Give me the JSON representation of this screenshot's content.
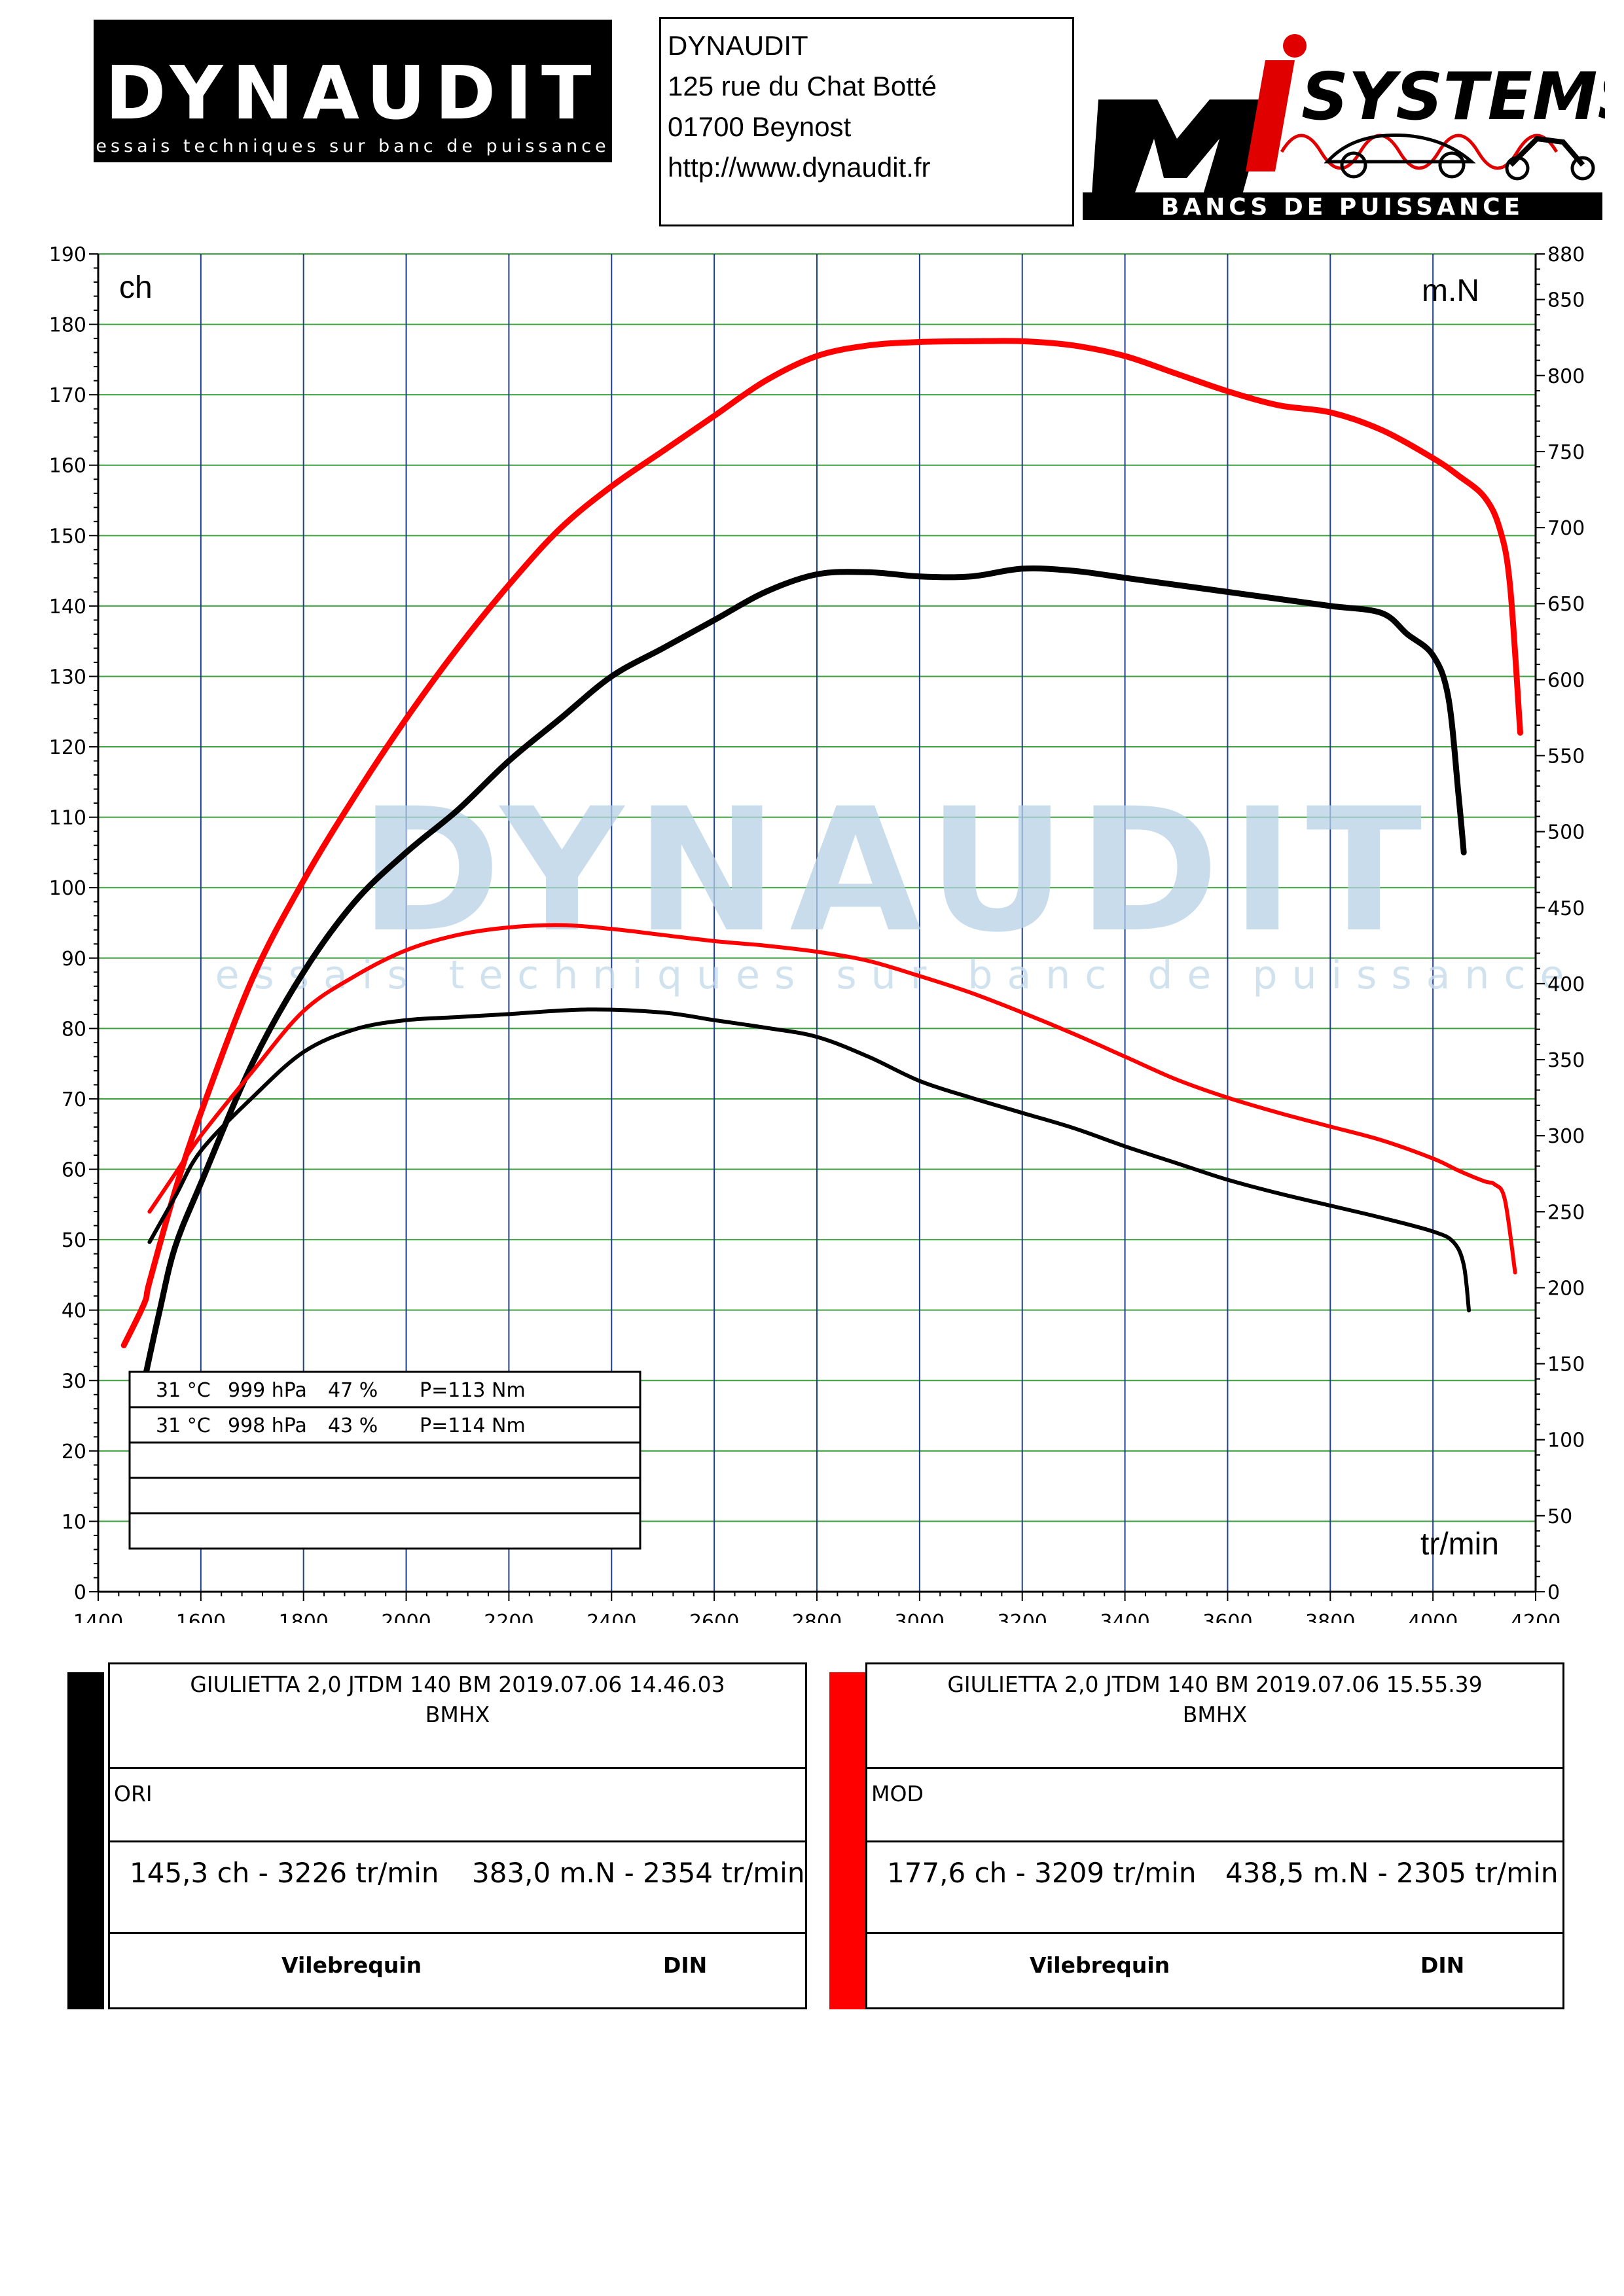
{
  "header": {
    "logo_left": {
      "brand": "DYNAUDIT",
      "tagline": "essais techniques sur banc de puissance"
    },
    "address": [
      "DYNAUDIT",
      "125 rue du Chat Botté",
      "01700 Beynost",
      "http://www.dynaudit.fr"
    ],
    "logo_right": {
      "brand_top": "SYSTEMS",
      "brand_bottom": "BANCS DE PUISSANCE",
      "letters": "Mi"
    }
  },
  "watermark": {
    "brand": "DYNAUDIT",
    "tagline": "essais techniques sur banc de puissance"
  },
  "conditions": [
    {
      "temp": "31 °C",
      "pressure": "999 hPa",
      "humidity": "47 %",
      "p": "P=113 Nm"
    },
    {
      "temp": "31 °C",
      "pressure": "998 hPa",
      "humidity": "43 %",
      "p": "P=114 Nm"
    },
    {
      "temp": "",
      "pressure": "",
      "humidity": "",
      "p": ""
    },
    {
      "temp": "",
      "pressure": "",
      "humidity": "",
      "p": ""
    },
    {
      "temp": "",
      "pressure": "",
      "humidity": "",
      "p": ""
    }
  ],
  "colors": {
    "ori": "#000000",
    "mod": "#ff0000",
    "grid_v": "#1f3f8f",
    "grid_h": "#3ca03c"
  },
  "chart_data": {
    "type": "line",
    "xlabel": "tr/min",
    "ylabel_left": "ch",
    "ylabel_right": "m.N",
    "xlim": [
      1400,
      4200
    ],
    "ylim_left": [
      0,
      190
    ],
    "ylim_right": [
      0,
      880
    ],
    "xticks": [
      1400,
      1600,
      1800,
      2000,
      2200,
      2400,
      2600,
      2800,
      3000,
      3200,
      3400,
      3600,
      3800,
      4000,
      4200
    ],
    "yticks_left": [
      0,
      10,
      20,
      30,
      40,
      50,
      60,
      70,
      80,
      90,
      100,
      110,
      120,
      130,
      140,
      150,
      160,
      170,
      180,
      190
    ],
    "yticks_right": [
      0,
      50,
      100,
      150,
      200,
      250,
      300,
      350,
      400,
      450,
      500,
      550,
      600,
      650,
      700,
      750,
      800,
      850,
      880
    ],
    "grid": true,
    "series": [
      {
        "name": "MOD",
        "quantity": "power",
        "axis": "left",
        "color": "#ff0000",
        "points": [
          [
            1450,
            35
          ],
          [
            1490,
            41
          ],
          [
            1500,
            44
          ],
          [
            1550,
            57
          ],
          [
            1600,
            68
          ],
          [
            1700,
            87
          ],
          [
            1800,
            101
          ],
          [
            1900,
            113
          ],
          [
            2000,
            124
          ],
          [
            2100,
            134
          ],
          [
            2200,
            143
          ],
          [
            2300,
            151
          ],
          [
            2400,
            157
          ],
          [
            2500,
            162
          ],
          [
            2600,
            167
          ],
          [
            2700,
            172
          ],
          [
            2800,
            175.5
          ],
          [
            2900,
            177
          ],
          [
            3000,
            177.5
          ],
          [
            3100,
            177.6
          ],
          [
            3200,
            177.6
          ],
          [
            3300,
            177
          ],
          [
            3400,
            175.5
          ],
          [
            3500,
            173
          ],
          [
            3600,
            170.5
          ],
          [
            3700,
            168.5
          ],
          [
            3800,
            167.5
          ],
          [
            3900,
            165
          ],
          [
            4000,
            161
          ],
          [
            4050,
            158.5
          ],
          [
            4100,
            155.5
          ],
          [
            4130,
            151
          ],
          [
            4150,
            143
          ],
          [
            4170,
            122
          ]
        ]
      },
      {
        "name": "ORI",
        "quantity": "power",
        "axis": "left",
        "color": "#000000",
        "points": [
          [
            1490,
            30
          ],
          [
            1520,
            40
          ],
          [
            1550,
            49
          ],
          [
            1600,
            58
          ],
          [
            1700,
            75
          ],
          [
            1800,
            88
          ],
          [
            1900,
            98
          ],
          [
            2000,
            105
          ],
          [
            2100,
            111
          ],
          [
            2200,
            118
          ],
          [
            2300,
            124
          ],
          [
            2400,
            130
          ],
          [
            2500,
            134
          ],
          [
            2600,
            138
          ],
          [
            2700,
            142
          ],
          [
            2800,
            144.5
          ],
          [
            2900,
            144.8
          ],
          [
            3000,
            144.2
          ],
          [
            3100,
            144.2
          ],
          [
            3200,
            145.3
          ],
          [
            3300,
            145
          ],
          [
            3400,
            144
          ],
          [
            3500,
            143
          ],
          [
            3600,
            142
          ],
          [
            3700,
            141
          ],
          [
            3800,
            140
          ],
          [
            3900,
            139
          ],
          [
            3950,
            136
          ],
          [
            4000,
            133
          ],
          [
            4030,
            127
          ],
          [
            4050,
            113
          ],
          [
            4060,
            105
          ]
        ]
      },
      {
        "name": "MOD",
        "quantity": "torque",
        "axis": "right",
        "color": "#ff0000",
        "points": [
          [
            1500,
            250
          ],
          [
            1550,
            275
          ],
          [
            1600,
            300
          ],
          [
            1700,
            342
          ],
          [
            1800,
            382
          ],
          [
            1900,
            405
          ],
          [
            2000,
            422
          ],
          [
            2100,
            432
          ],
          [
            2200,
            437
          ],
          [
            2305,
            438.5
          ],
          [
            2400,
            436
          ],
          [
            2500,
            432
          ],
          [
            2600,
            428
          ],
          [
            2700,
            425
          ],
          [
            2800,
            421
          ],
          [
            2900,
            415
          ],
          [
            3000,
            405
          ],
          [
            3100,
            394
          ],
          [
            3200,
            381
          ],
          [
            3300,
            367
          ],
          [
            3400,
            352
          ],
          [
            3500,
            337
          ],
          [
            3600,
            325
          ],
          [
            3700,
            315
          ],
          [
            3800,
            306
          ],
          [
            3900,
            297
          ],
          [
            4000,
            285
          ],
          [
            4050,
            277
          ],
          [
            4100,
            270
          ],
          [
            4120,
            268
          ],
          [
            4140,
            258
          ],
          [
            4160,
            210
          ]
        ]
      },
      {
        "name": "ORI",
        "quantity": "torque",
        "axis": "right",
        "color": "#000000",
        "points": [
          [
            1500,
            230
          ],
          [
            1550,
            260
          ],
          [
            1600,
            290
          ],
          [
            1700,
            325
          ],
          [
            1800,
            355
          ],
          [
            1900,
            370
          ],
          [
            2000,
            376
          ],
          [
            2100,
            378
          ],
          [
            2200,
            380
          ],
          [
            2354,
            383
          ],
          [
            2500,
            381
          ],
          [
            2600,
            376
          ],
          [
            2700,
            371
          ],
          [
            2800,
            365
          ],
          [
            2900,
            352
          ],
          [
            3000,
            336
          ],
          [
            3100,
            325
          ],
          [
            3200,
            315
          ],
          [
            3300,
            305
          ],
          [
            3400,
            293
          ],
          [
            3500,
            282
          ],
          [
            3600,
            271
          ],
          [
            3700,
            262
          ],
          [
            3800,
            254
          ],
          [
            3900,
            246
          ],
          [
            4000,
            237
          ],
          [
            4040,
            230
          ],
          [
            4060,
            215
          ],
          [
            4070,
            185
          ]
        ]
      }
    ]
  },
  "legend_panels": [
    {
      "id": "ori",
      "color": "#000000",
      "title": "GIULIETTA 2,0 JTDM 140 BM   2019.07.06 14.46.03",
      "subtitle": "BMHX",
      "label": "ORI",
      "power": "145,3 ch - 3226 tr/min",
      "torque": "383,0 m.N - 2354 tr/min",
      "foot_left": "Vilebrequin",
      "foot_right": "DIN"
    },
    {
      "id": "mod",
      "color": "#ff0000",
      "title": "GIULIETTA 2,0 JTDM 140 BM   2019.07.06 15.55.39",
      "subtitle": "BMHX",
      "label": "MOD",
      "power": "177,6 ch - 3209 tr/min",
      "torque": "438,5 m.N - 2305 tr/min",
      "foot_left": "Vilebrequin",
      "foot_right": "DIN"
    }
  ]
}
